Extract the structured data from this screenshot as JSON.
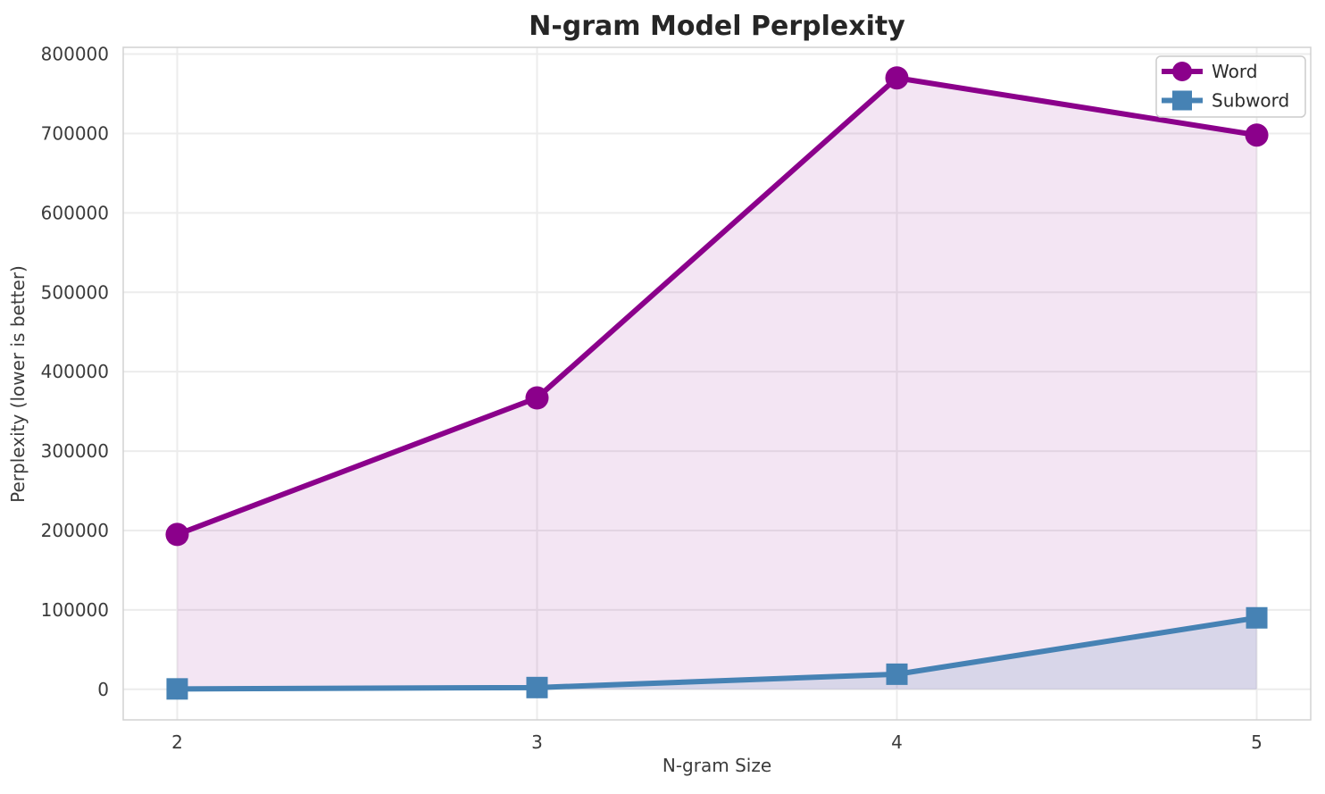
{
  "chart_data": {
    "type": "line",
    "title": "N-gram Model Perplexity",
    "xlabel": "N-gram Size",
    "ylabel": "Perplexity (lower is better)",
    "x": [
      2,
      3,
      4,
      5
    ],
    "series": [
      {
        "name": "Word",
        "values": [
          195000,
          367000,
          770000,
          698000
        ],
        "color": "#8B008B",
        "marker": "circle",
        "fill_alpha": 0.1
      },
      {
        "name": "Subword",
        "values": [
          500,
          2200,
          19000,
          90000
        ],
        "color": "#4682B4",
        "marker": "square",
        "fill_alpha": 0.15
      }
    ],
    "xticks": [
      "2",
      "3",
      "4",
      "5"
    ],
    "yticks": [
      0,
      100000,
      200000,
      300000,
      400000,
      500000,
      600000,
      700000,
      800000
    ],
    "xlim": [
      1.85,
      5.15
    ],
    "ylim": [
      -38500,
      808500
    ],
    "grid": true,
    "legend_position": "upper right",
    "grid_color": "#ececec",
    "spine_color": "#d2d2d2",
    "tick_color": "#3b3b3b",
    "background": "#ffffff"
  }
}
